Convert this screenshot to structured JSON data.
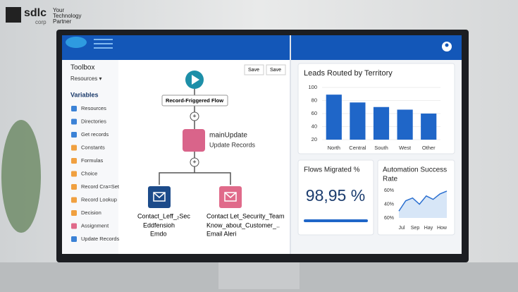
{
  "logo": {
    "brand": "sdlc",
    "sub": "corp",
    "tagline": [
      "Your",
      "Technology",
      "Partner"
    ]
  },
  "sidebar": {
    "toolbox": "Toolbox",
    "resources": "Resources ▾",
    "section": "Variables",
    "items": [
      {
        "label": "Resources",
        "color": "#3b82d6"
      },
      {
        "label": "Directories",
        "color": "#3b82d6"
      },
      {
        "label": "Get records",
        "color": "#3b82d6"
      },
      {
        "label": "Constants",
        "color": "#f0a040"
      },
      {
        "label": "Formulas",
        "color": "#f0a040"
      },
      {
        "label": "Choice",
        "color": "#f0a040"
      },
      {
        "label": "Record Cra=Set",
        "color": "#f0a040"
      },
      {
        "label": "Record Lookup",
        "color": "#f0a040"
      },
      {
        "label": "Decision",
        "color": "#f0a040"
      },
      {
        "label": "Assignment",
        "color": "#e06a8a"
      },
      {
        "label": "Update Records",
        "color": "#3b82d6"
      }
    ]
  },
  "flow": {
    "buttons": [
      "Save",
      "Save"
    ],
    "start": "Record-Friggered Flow",
    "node": {
      "title": "mainUpdate",
      "subtitle": "Update Records"
    },
    "left": [
      "Contact_Leff_₂Sec",
      "Eddfensioh",
      "Emdo"
    ],
    "right": [
      "Contact Let_Security_Team",
      "Know_about_Customer_..",
      "Email Aleri"
    ]
  },
  "bar_chart": {
    "type": "bar",
    "title": "Leads Routed by Territory",
    "categories": [
      "North",
      "Central",
      "South",
      "West",
      "Other"
    ],
    "values": [
      89,
      77,
      70,
      66,
      60
    ],
    "color": "#1f66c8",
    "ylim": [
      20,
      100
    ],
    "yticks": [
      20,
      40,
      60,
      80,
      100
    ]
  },
  "migrated": {
    "title": "Flows Migrated %",
    "value": "98,95 %"
  },
  "line_chart": {
    "type": "line",
    "title": [
      "Automation Success",
      "Rate"
    ],
    "y_labels": [
      "60%",
      "40%",
      "60%"
    ],
    "x_labels": [
      "Jul",
      "Sep",
      "Hay",
      "How"
    ],
    "values": [
      30,
      45,
      49,
      40,
      52,
      47,
      55,
      59
    ],
    "ylim": [
      20,
      60
    ],
    "color": "#2a6fd0"
  }
}
